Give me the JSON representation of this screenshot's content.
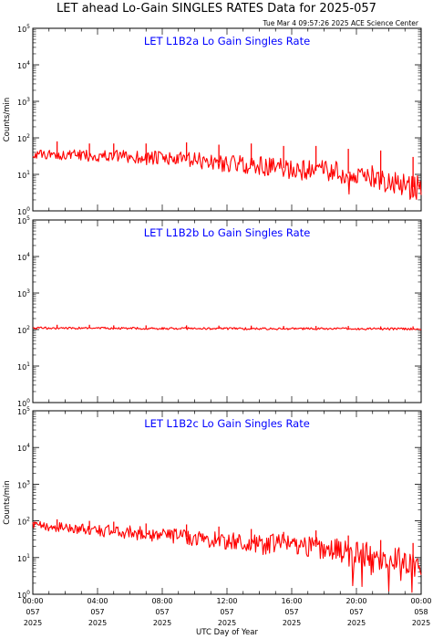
{
  "title": "LET ahead Lo-Gain SINGLES RATES Data for 2025-057",
  "timestamp": "Tue Mar  4 09:57:26 2025 ACE Science Center",
  "xlabel": "UTC Day of Year",
  "colors": {
    "trace": "#ff0000",
    "panel_title": "#0000ff",
    "axes": "#000000"
  },
  "chart_data": [
    {
      "type": "line",
      "title": "LET L1B2a Lo Gain Singles Rate",
      "ylabel": "Counts/min",
      "yscale": "log",
      "ylim": [
        1,
        100000
      ],
      "xlim": [
        "2025-057 00:00",
        "2025-058 00:00"
      ],
      "y_tick_labels": [
        "10^0",
        "10^1",
        "10^2",
        "10^3",
        "10^4",
        "10^5"
      ],
      "series": [
        {
          "x_hours": [
            0,
            2,
            4,
            6,
            8,
            10,
            12,
            14,
            16,
            18,
            20,
            22,
            23,
            24
          ],
          "values": [
            35,
            34,
            32,
            30,
            27,
            24,
            20,
            17,
            14,
            12,
            10,
            7,
            5,
            4
          ],
          "spike_hours": [
            1.5,
            3.5,
            5,
            7,
            9.5,
            11.5,
            13.5,
            15.5,
            17.5,
            19.5,
            21.5,
            23.5
          ],
          "spike_values": [
            80,
            70,
            70,
            70,
            75,
            65,
            70,
            60,
            60,
            50,
            45,
            30
          ]
        }
      ]
    },
    {
      "type": "line",
      "title": "LET L1B2b Lo Gain Singles Rate",
      "ylabel": "",
      "yscale": "log",
      "ylim": [
        1,
        100000
      ],
      "xlim": [
        "2025-057 00:00",
        "2025-058 00:00"
      ],
      "y_tick_labels": [
        "10^0",
        "10^1",
        "10^2",
        "10^3",
        "10^4",
        "10^5"
      ],
      "series": [
        {
          "x_hours": [
            0,
            6,
            12,
            18,
            24
          ],
          "values": [
            110,
            108,
            106,
            105,
            104
          ],
          "spike_hours": [
            1.5,
            3.5,
            5,
            7,
            9.5,
            11.5,
            13.5,
            15.5,
            17.5,
            19.5,
            21.5,
            23.5
          ],
          "spike_values": [
            135,
            135,
            130,
            130,
            130,
            128,
            128,
            125,
            125,
            125,
            122,
            122
          ]
        }
      ]
    },
    {
      "type": "line",
      "title": "LET L1B2c Lo Gain Singles Rate",
      "ylabel": "Counts/min",
      "yscale": "log",
      "ylim": [
        1,
        100000
      ],
      "xlim": [
        "2025-057 00:00",
        "2025-058 00:00"
      ],
      "y_tick_labels": [
        "10^0",
        "10^1",
        "10^2",
        "10^3",
        "10^4",
        "10^5"
      ],
      "x_tick_labels": [
        [
          "00:00",
          "057",
          "2025"
        ],
        [
          "04:00",
          "057",
          "2025"
        ],
        [
          "08:00",
          "057",
          "2025"
        ],
        [
          "12:00",
          "057",
          "2025"
        ],
        [
          "16:00",
          "057",
          "2025"
        ],
        [
          "20:00",
          "057",
          "2025"
        ],
        [
          "00:00",
          "058",
          "2025"
        ]
      ],
      "series": [
        {
          "x_hours": [
            0,
            2,
            4,
            6,
            8,
            10,
            12,
            14,
            16,
            18,
            20,
            22,
            23,
            24
          ],
          "values": [
            75,
            65,
            55,
            48,
            42,
            35,
            28,
            22,
            25,
            18,
            13,
            10,
            8,
            7
          ],
          "spike_hours": [
            1.5,
            3.5,
            5,
            7,
            9.5,
            11.5,
            13.5,
            15.5,
            17.5,
            19.5,
            21.5,
            23.5
          ],
          "spike_values": [
            110,
            100,
            95,
            85,
            80,
            70,
            60,
            50,
            55,
            40,
            30,
            25
          ]
        }
      ]
    }
  ]
}
